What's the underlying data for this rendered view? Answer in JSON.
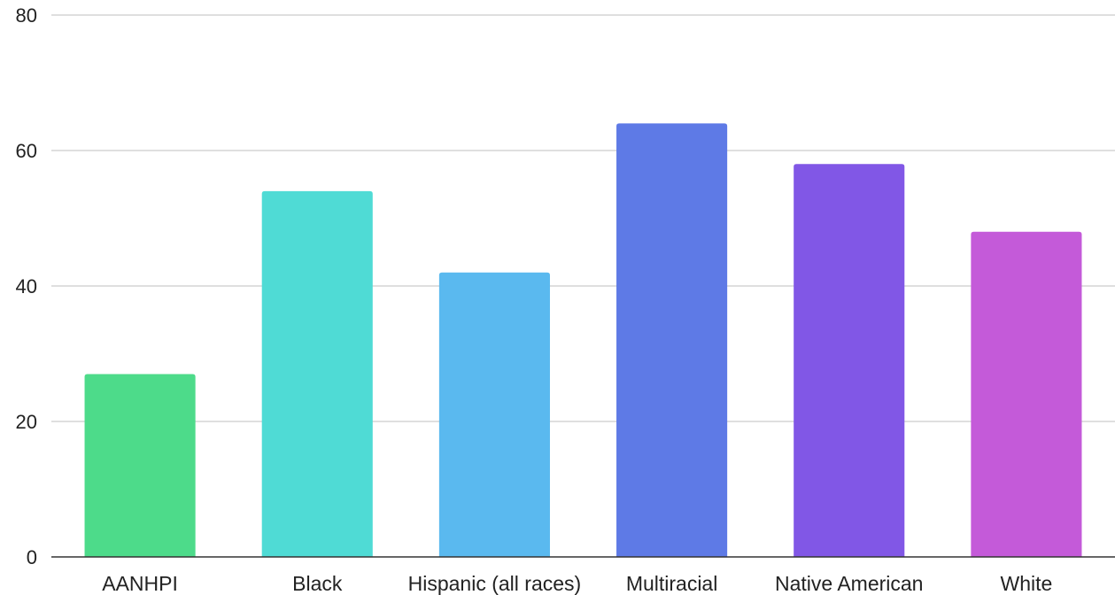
{
  "chart_data": {
    "type": "bar",
    "title": "",
    "xlabel": "",
    "ylabel": "",
    "categories": [
      "AANHPI",
      "Black",
      "Hispanic (all races)",
      "Multiracial",
      "Native American",
      "White"
    ],
    "values": [
      27,
      54,
      42,
      64,
      58,
      48
    ],
    "colors": [
      "#4ddb8a",
      "#4fdbd5",
      "#5ab9ef",
      "#5e7ae6",
      "#8157e6",
      "#c45ad9"
    ],
    "ylim": [
      0,
      80
    ],
    "yticks": [
      0,
      20,
      40,
      60,
      80
    ],
    "grid": true,
    "legend": "none"
  }
}
